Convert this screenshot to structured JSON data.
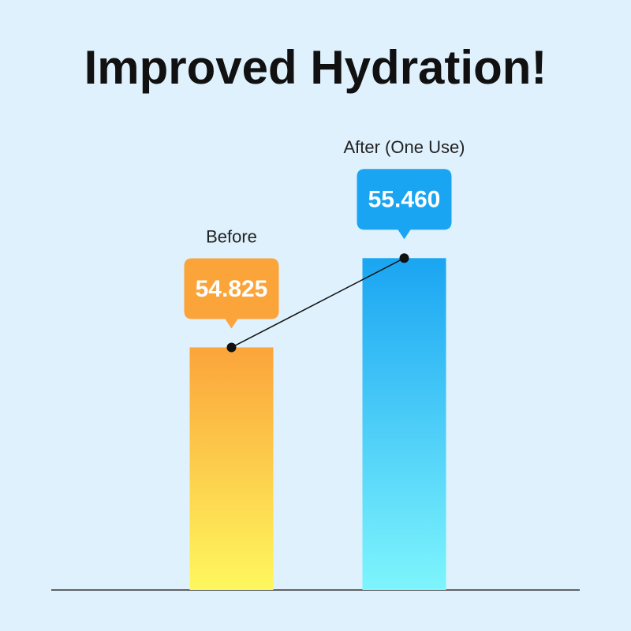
{
  "chart_data": {
    "type": "bar",
    "title": "Improved Hydration!",
    "categories": [
      "Before",
      "After (One Use)"
    ],
    "values": [
      54.825,
      55.46
    ],
    "value_labels": [
      "54.825",
      "55.460"
    ],
    "colors": [
      [
        "#fba43a",
        "#fef85e"
      ],
      [
        "#1aa5f2",
        "#7ef5fd"
      ]
    ],
    "ylim": [
      53.1,
      56.0
    ]
  }
}
